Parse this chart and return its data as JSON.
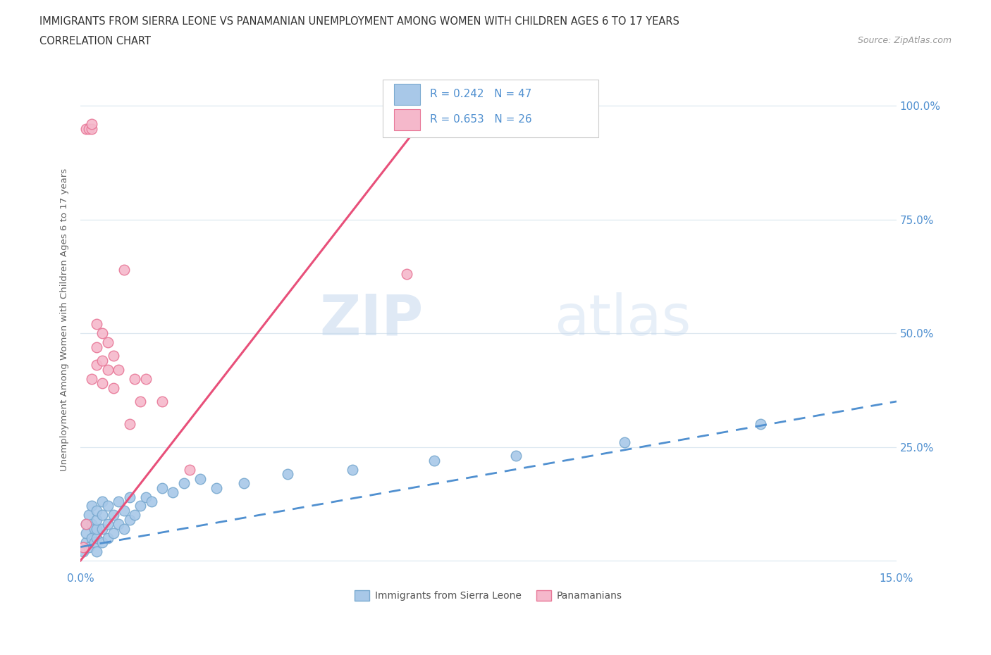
{
  "title_line1": "IMMIGRANTS FROM SIERRA LEONE VS PANAMANIAN UNEMPLOYMENT AMONG WOMEN WITH CHILDREN AGES 6 TO 17 YEARS",
  "title_line2": "CORRELATION CHART",
  "source": "Source: ZipAtlas.com",
  "ylabel": "Unemployment Among Women with Children Ages 6 to 17 years",
  "xlim": [
    0.0,
    0.15
  ],
  "ylim": [
    -0.02,
    1.08
  ],
  "sierra_leone_color": "#a8c8e8",
  "sierra_leone_edge": "#7aaad0",
  "panamanian_color": "#f5b8cb",
  "panamanian_edge": "#e87898",
  "trend_blue_color": "#5090d0",
  "trend_pink_color": "#e8507a",
  "legend_label1": "Immigrants from Sierra Leone",
  "legend_label2": "Panamanians",
  "watermark_zip": "ZIP",
  "watermark_atlas": "atlas",
  "background_color": "#ffffff",
  "grid_color": "#dde8f0",
  "sierra_leone_x": [
    0.0005,
    0.001,
    0.001,
    0.001,
    0.0015,
    0.0015,
    0.002,
    0.002,
    0.002,
    0.0025,
    0.0025,
    0.003,
    0.003,
    0.003,
    0.003,
    0.003,
    0.004,
    0.004,
    0.004,
    0.004,
    0.005,
    0.005,
    0.005,
    0.006,
    0.006,
    0.007,
    0.007,
    0.008,
    0.008,
    0.009,
    0.009,
    0.01,
    0.011,
    0.012,
    0.013,
    0.015,
    0.017,
    0.019,
    0.022,
    0.025,
    0.03,
    0.038,
    0.05,
    0.065,
    0.08,
    0.1,
    0.125
  ],
  "sierra_leone_y": [
    0.02,
    0.04,
    0.06,
    0.08,
    0.03,
    0.1,
    0.05,
    0.08,
    0.12,
    0.04,
    0.07,
    0.02,
    0.05,
    0.07,
    0.09,
    0.11,
    0.04,
    0.07,
    0.1,
    0.13,
    0.05,
    0.08,
    0.12,
    0.06,
    0.1,
    0.08,
    0.13,
    0.07,
    0.11,
    0.09,
    0.14,
    0.1,
    0.12,
    0.14,
    0.13,
    0.16,
    0.15,
    0.17,
    0.18,
    0.16,
    0.17,
    0.19,
    0.2,
    0.22,
    0.23,
    0.26,
    0.3
  ],
  "panamanian_x": [
    0.0005,
    0.001,
    0.001,
    0.0015,
    0.002,
    0.002,
    0.002,
    0.003,
    0.003,
    0.003,
    0.004,
    0.004,
    0.004,
    0.005,
    0.005,
    0.006,
    0.006,
    0.007,
    0.008,
    0.009,
    0.01,
    0.011,
    0.012,
    0.015,
    0.02,
    0.06
  ],
  "panamanian_y": [
    0.03,
    0.08,
    0.95,
    0.95,
    0.95,
    0.96,
    0.4,
    0.43,
    0.47,
    0.52,
    0.39,
    0.44,
    0.5,
    0.42,
    0.48,
    0.38,
    0.45,
    0.42,
    0.64,
    0.3,
    0.4,
    0.35,
    0.4,
    0.35,
    0.2,
    0.63
  ],
  "pink_line_x": [
    0.0,
    0.065
  ],
  "pink_line_y": [
    0.0,
    1.0
  ],
  "blue_line_x": [
    0.0,
    0.15
  ],
  "blue_line_y": [
    0.03,
    0.35
  ]
}
